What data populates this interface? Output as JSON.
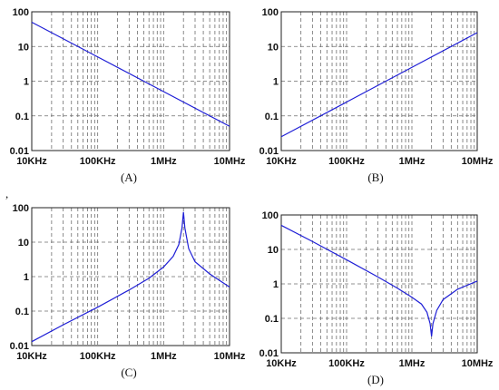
{
  "stray_mark": ",",
  "chart_data": [
    {
      "type": "line",
      "caption": "(A)",
      "xscale": "log",
      "yscale": "log",
      "xlim": [
        "10KHz",
        "10MHz"
      ],
      "ylim": [
        0.01,
        100
      ],
      "xticks": [
        "10KHz",
        "100KHz",
        "1MHz",
        "10MHz"
      ],
      "yticks": [
        "100",
        "10",
        "1",
        "0.1",
        "0.01"
      ],
      "grid": true,
      "series": [
        {
          "color": "#1f1fd6",
          "x": [
            "10KHz",
            "100KHz",
            "1MHz",
            "10MHz"
          ],
          "y": [
            50,
            5,
            0.5,
            0.05
          ]
        }
      ]
    },
    {
      "type": "line",
      "caption": "(B)",
      "xscale": "log",
      "yscale": "log",
      "xlim": [
        "10KHz",
        "10MHz"
      ],
      "ylim": [
        0.01,
        100
      ],
      "xticks": [
        "10KHz",
        "100KHz",
        "1MHz",
        "10MHz"
      ],
      "yticks": [
        "100",
        "10",
        "1",
        "0.1",
        "0.01"
      ],
      "grid": true,
      "series": [
        {
          "color": "#1f1fd6",
          "x": [
            "10KHz",
            "100KHz",
            "1MHz",
            "10MHz"
          ],
          "y": [
            0.025,
            0.25,
            2.5,
            25
          ]
        }
      ]
    },
    {
      "type": "line",
      "caption": "(C)",
      "xscale": "log",
      "yscale": "log",
      "xlim": [
        "10KHz",
        "10MHz"
      ],
      "ylim": [
        0.01,
        100
      ],
      "xticks": [
        "10KHz",
        "100KHz",
        "1MHz",
        "10MHz"
      ],
      "yticks": [
        "100",
        "10",
        "1",
        "0.1",
        "0.01"
      ],
      "grid": true,
      "series": [
        {
          "color": "#1f1fd6",
          "x": [
            "10KHz",
            "30KHz",
            "100KHz",
            "300KHz",
            "600KHz",
            "1MHz",
            "1.4MHz",
            "1.7MHz",
            "1.9MHz",
            "2MHz",
            "2.1MHz",
            "2.4MHz",
            "3MHz",
            "5MHz",
            "10MHz"
          ],
          "y": [
            0.013,
            0.04,
            0.13,
            0.41,
            0.9,
            1.9,
            3.9,
            8.5,
            26,
            75,
            26,
            6.5,
            2.7,
            1.2,
            0.5
          ]
        }
      ]
    },
    {
      "type": "line",
      "caption": "(D)",
      "xscale": "log",
      "yscale": "log",
      "xlim": [
        "10KHz",
        "10MHz"
      ],
      "ylim": [
        0.01,
        100
      ],
      "xticks": [
        "10KHz",
        "100KHz",
        "1MHz",
        "10MHz"
      ],
      "yticks": [
        "100",
        "10",
        "1",
        "0.1",
        "0.01"
      ],
      "grid": true,
      "series": [
        {
          "color": "#1f1fd6",
          "x": [
            "10KHz",
            "30KHz",
            "100KHz",
            "300KHz",
            "600KHz",
            "1MHz",
            "1.4MHz",
            "1.7MHz",
            "1.9MHz",
            "2MHz",
            "2.1MHz",
            "2.4MHz",
            "3MHz",
            "5MHz",
            "10MHz"
          ],
          "y": [
            50,
            17,
            5,
            1.6,
            0.75,
            0.41,
            0.26,
            0.15,
            0.07,
            0.03,
            0.07,
            0.17,
            0.35,
            0.7,
            1.2
          ]
        }
      ]
    }
  ]
}
